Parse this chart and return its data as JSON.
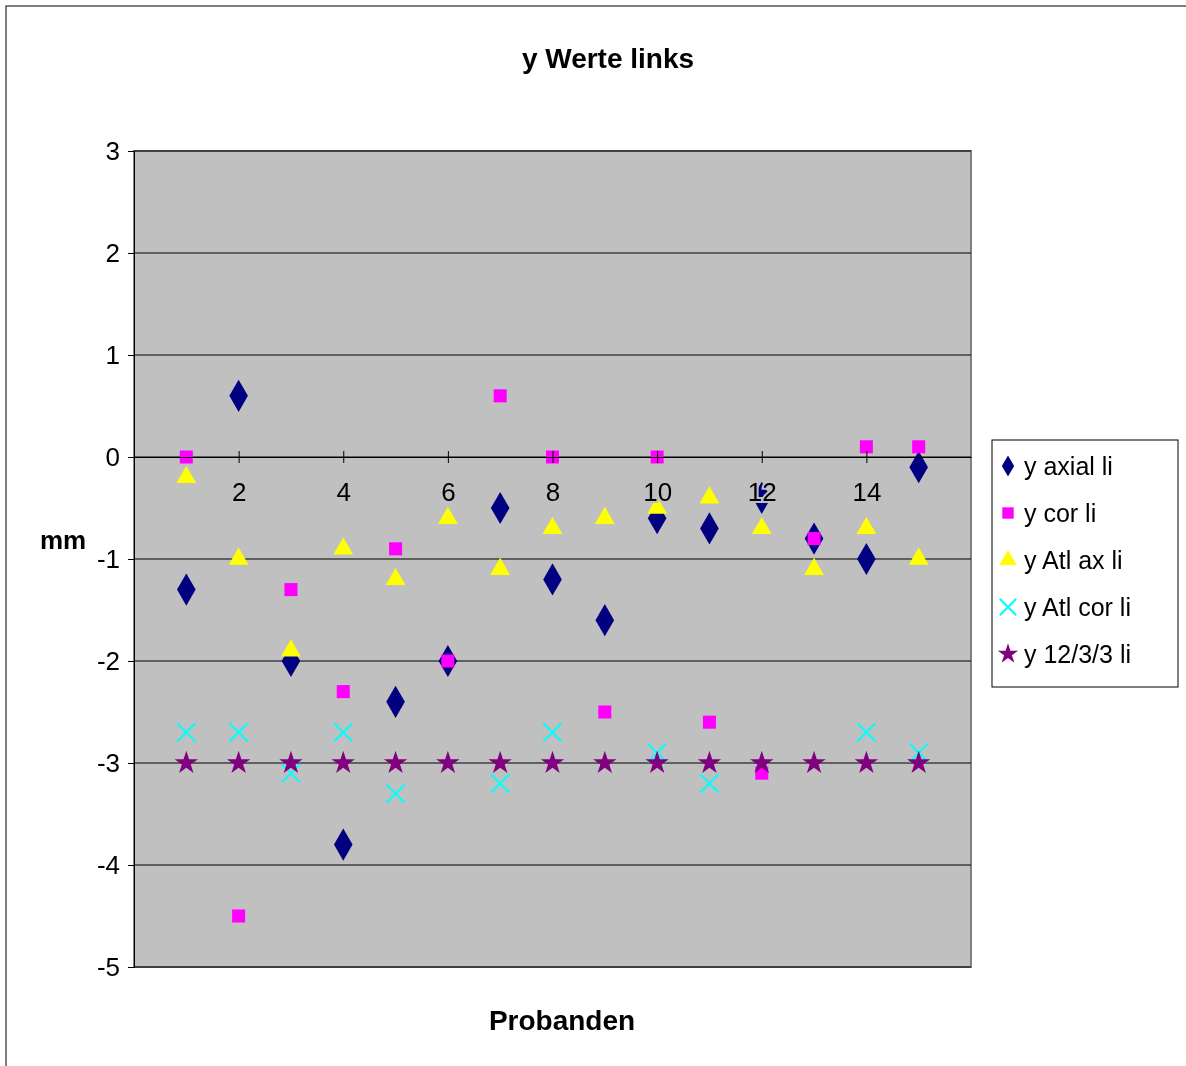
{
  "chart_data": {
    "type": "scatter",
    "title": "y Werte links",
    "xlabel": "Probanden",
    "ylabel": "mm",
    "x": [
      1,
      2,
      3,
      4,
      5,
      6,
      7,
      8,
      9,
      10,
      11,
      12,
      13,
      14,
      15
    ],
    "xlim": [
      0,
      16
    ],
    "xticks": [
      2,
      4,
      6,
      8,
      10,
      12,
      14
    ],
    "ylim": [
      -5,
      3
    ],
    "yticks": [
      -5,
      -4,
      -3,
      -2,
      -1,
      0,
      1,
      2,
      3
    ],
    "grid": "y",
    "legend": "right",
    "series": [
      {
        "name": "y axial li",
        "color": "#000080",
        "marker": "diamond",
        "values": [
          -1.3,
          0.6,
          -2.0,
          -3.8,
          -2.4,
          -2.0,
          -0.5,
          -1.2,
          -1.6,
          -0.6,
          -0.7,
          -0.4,
          -0.8,
          -1.0,
          -0.1
        ]
      },
      {
        "name": "y cor li",
        "color": "#ff00ff",
        "marker": "square",
        "values": [
          0.0,
          -4.5,
          -1.3,
          -2.3,
          -0.9,
          -2.0,
          0.6,
          0.0,
          -2.5,
          0.0,
          -2.6,
          -3.1,
          -0.8,
          0.1,
          0.1
        ]
      },
      {
        "name": "y Atl ax li",
        "color": "#ffff00",
        "marker": "triangle",
        "values": [
          -0.2,
          -1.0,
          -1.9,
          -0.9,
          -1.2,
          -0.6,
          -1.1,
          -0.7,
          -0.6,
          -0.5,
          -0.4,
          -0.7,
          -1.1,
          -0.7,
          -1.0
        ]
      },
      {
        "name": "y Atl cor li",
        "color": "#00ffff",
        "marker": "cross",
        "values": [
          -2.7,
          -2.7,
          -3.1,
          -2.7,
          -3.3,
          null,
          -3.2,
          -2.7,
          null,
          -2.9,
          -3.2,
          null,
          null,
          -2.7,
          -2.9
        ]
      },
      {
        "name": "y 12/3/3 li",
        "color": "#800080",
        "marker": "star",
        "values": [
          -3.0,
          -3.0,
          -3.0,
          -3.0,
          -3.0,
          -3.0,
          -3.0,
          -3.0,
          -3.0,
          -3.0,
          -3.0,
          -3.0,
          -3.0,
          -3.0,
          -3.0
        ]
      }
    ]
  }
}
